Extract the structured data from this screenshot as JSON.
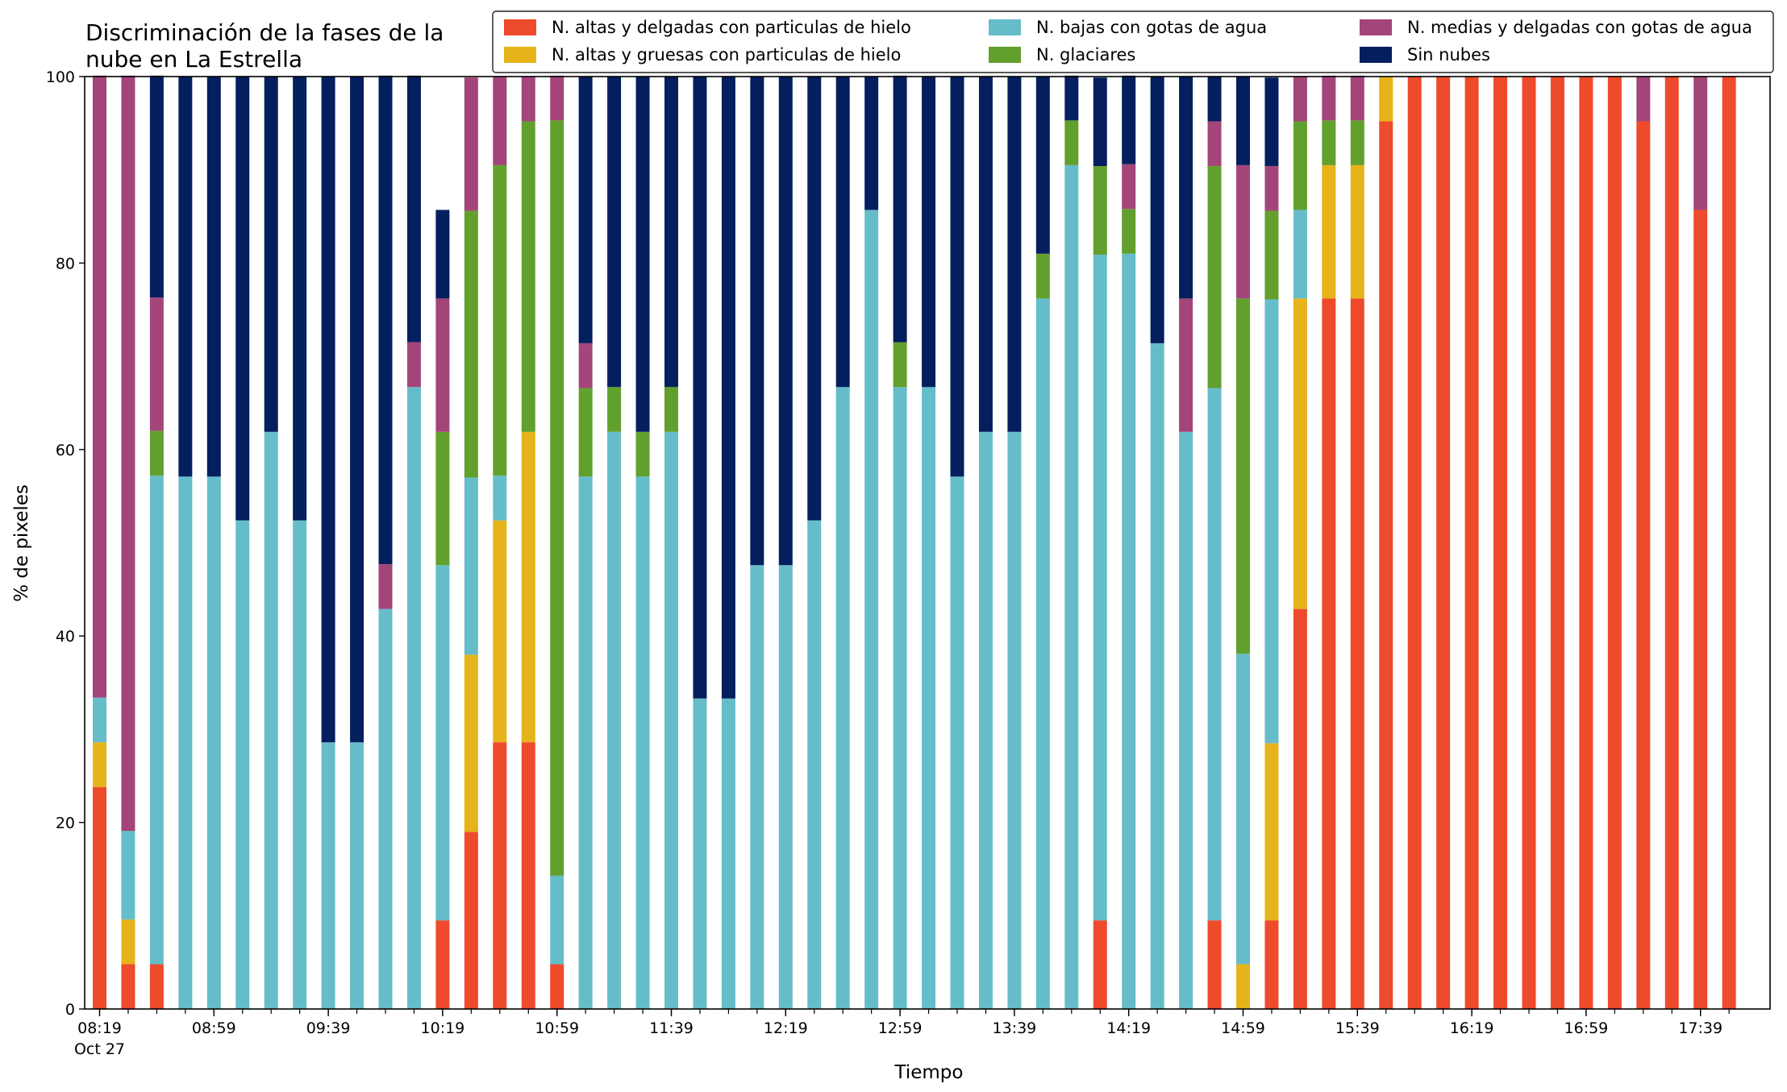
{
  "chart_data": {
    "type": "bar",
    "stacked": true,
    "title_lines": [
      "Discriminación de la fases de la",
      "nube en La Estrella"
    ],
    "xlabel": "Tiempo",
    "ylabel": "% de pixeles",
    "ylim": [
      0,
      100
    ],
    "yticks": [
      0,
      20,
      40,
      60,
      80,
      100
    ],
    "xtick_labels": [
      "08:19",
      "08:59",
      "09:39",
      "10:19",
      "10:59",
      "11:39",
      "12:19",
      "12:59",
      "13:39",
      "14:19",
      "14:59",
      "15:39",
      "16:19",
      "16:59",
      "17:39"
    ],
    "xtick_sublabel": "Oct 27",
    "grid": false,
    "legend_position": "top-right",
    "colors": {
      "N. altas y delgadas con particulas de hielo": "#ee4a2c",
      "N. altas y gruesas con particulas de hielo": "#e6b31a",
      "N. bajas con gotas de agua": "#66bdca",
      "N. glaciares": "#62a02d",
      "N. medias y delgadas con gotas de agua": "#a4457a",
      "Sin nubes": "#041f5e"
    },
    "legend": [
      "N. altas y delgadas con particulas de hielo",
      "N. altas y gruesas con particulas de hielo",
      "N. bajas con gotas de agua",
      "N. glaciares",
      "N. medias y delgadas con gotas de agua",
      "Sin nubes"
    ],
    "series_order": [
      "altas_delgadas",
      "altas_gruesas",
      "bajas",
      "glaciares",
      "medias",
      "sin_nubes"
    ],
    "categories": [
      "08:19",
      "08:29",
      "08:39",
      "08:49",
      "08:59",
      "09:09",
      "09:19",
      "09:29",
      "09:39",
      "09:49",
      "09:59",
      "10:09",
      "10:19",
      "10:29",
      "10:39",
      "10:49",
      "10:59",
      "11:09",
      "11:19",
      "11:29",
      "11:39",
      "11:49",
      "11:59",
      "12:09",
      "12:19",
      "12:29",
      "12:39",
      "12:49",
      "12:59",
      "13:09",
      "13:19",
      "13:29",
      "13:39",
      "13:49",
      "13:59",
      "14:09",
      "14:19",
      "14:29",
      "14:39",
      "14:49",
      "14:59",
      "15:09",
      "15:19",
      "15:29",
      "15:39",
      "15:49",
      "15:59",
      "16:09",
      "16:19",
      "16:29",
      "16:39",
      "16:49",
      "16:59",
      "17:09",
      "17:19",
      "17:29",
      "17:39",
      "17:49"
    ],
    "series": {
      "altas_delgadas": [
        23.8,
        4.8,
        4.8,
        0,
        0,
        0,
        0,
        0,
        0,
        0,
        0,
        0,
        9.5,
        19,
        28.6,
        28.6,
        4.8,
        0,
        0,
        0,
        0,
        0,
        0,
        0,
        0,
        0,
        0,
        0,
        0,
        0,
        0,
        0,
        0,
        0,
        0,
        9.5,
        0,
        0,
        0,
        9.5,
        0,
        9.5,
        42.9,
        76.2,
        76.2,
        95.2,
        100,
        100,
        100,
        100,
        100,
        100,
        100,
        100,
        95.2,
        100,
        85.7,
        100
      ],
      "altas_gruesas": [
        4.8,
        4.8,
        0,
        0,
        0,
        0,
        0,
        0,
        0,
        0,
        0,
        0,
        0,
        19,
        23.8,
        33.3,
        0,
        0,
        0,
        0,
        0,
        0,
        0,
        0,
        0,
        0,
        0,
        0,
        0,
        0,
        0,
        0,
        0,
        0,
        0,
        0,
        0,
        0,
        0,
        0,
        4.8,
        19,
        33.3,
        14.3,
        14.3,
        4.8,
        0,
        0,
        0,
        0,
        0,
        0,
        0,
        0,
        0,
        0,
        0,
        0
      ],
      "bajas": [
        4.8,
        9.5,
        52.4,
        57.1,
        57.1,
        52.4,
        61.9,
        52.4,
        28.6,
        28.6,
        42.9,
        66.7,
        38.1,
        19,
        4.8,
        0,
        9.5,
        57.1,
        61.9,
        57.1,
        61.9,
        33.3,
        33.3,
        47.6,
        47.6,
        52.4,
        66.7,
        85.7,
        66.7,
        66.7,
        57.1,
        61.9,
        61.9,
        76.2,
        90.5,
        71.4,
        81,
        71.4,
        61.9,
        57.1,
        33.3,
        47.6,
        9.5,
        0,
        0,
        0,
        0,
        0,
        0,
        0,
        0,
        0,
        0,
        0,
        0,
        0,
        0,
        0
      ],
      "glaciares": [
        0,
        0,
        4.8,
        0,
        0,
        0,
        0,
        0,
        0,
        0,
        0,
        0,
        14.3,
        28.6,
        33.3,
        33.3,
        81,
        9.5,
        4.8,
        4.8,
        4.8,
        0,
        0,
        0,
        0,
        0,
        0,
        0,
        4.8,
        0,
        0,
        0,
        0,
        4.8,
        4.8,
        9.5,
        4.8,
        0,
        0,
        23.8,
        38.1,
        9.5,
        9.5,
        4.8,
        4.8,
        0,
        0,
        0,
        0,
        0,
        0,
        0,
        0,
        0,
        0,
        0,
        0,
        0
      ],
      "medias": [
        66.7,
        81,
        14.3,
        0,
        0,
        0,
        0,
        0,
        0,
        0,
        4.8,
        4.8,
        14.3,
        14.3,
        9.5,
        4.8,
        4.8,
        4.8,
        0,
        0,
        0,
        0,
        0,
        0,
        0,
        0,
        0,
        0,
        0,
        0,
        0,
        0,
        0,
        0,
        0,
        0,
        4.8,
        0,
        14.3,
        4.8,
        14.3,
        4.8,
        4.8,
        4.8,
        4.8,
        0,
        0,
        0,
        0,
        0,
        0,
        0,
        0,
        0,
        4.8,
        0,
        14.3,
        0
      ],
      "sin_nubes": [
        0,
        0,
        23.8,
        42.9,
        42.9,
        47.6,
        38.1,
        47.6,
        71.4,
        71.4,
        52.4,
        28.6,
        9.5,
        0,
        0,
        0,
        0,
        28.6,
        33.3,
        38.1,
        33.3,
        66.7,
        66.7,
        52.4,
        52.4,
        47.6,
        33.3,
        14.3,
        28.6,
        33.3,
        42.9,
        38.1,
        38.1,
        19,
        4.8,
        9.5,
        9.5,
        28.6,
        23.8,
        4.8,
        9.5,
        9.5,
        0,
        0,
        0,
        0,
        0,
        0,
        0,
        0,
        0,
        0,
        0,
        0,
        0,
        0,
        0,
        0
      ]
    }
  }
}
